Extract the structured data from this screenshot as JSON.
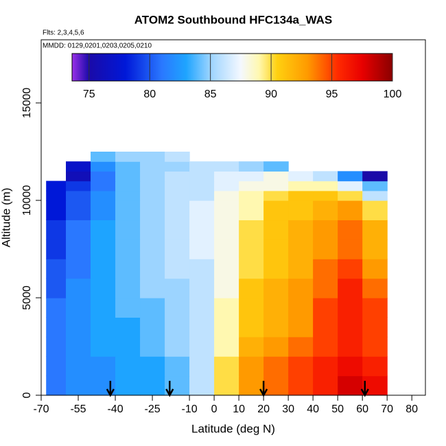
{
  "chart_data": {
    "type": "heatmap",
    "title": "ATOM2 Southbound HFC134a_WAS",
    "subtitle": "Flts: 2,3,4,5,6",
    "annotation": "MMDD: 0129,0201,0203,0205,0210",
    "x_label": "Latitude (deg N)",
    "y_label": "Altitude (m)",
    "xlim": [
      -70,
      85.5
    ],
    "ylim": [
      0,
      18240
    ],
    "xticks": [
      -70,
      -55,
      -40,
      -25,
      -10,
      0,
      10,
      20,
      30,
      40,
      50,
      60,
      70,
      80
    ],
    "yticks": [
      0,
      5000,
      10000,
      15000
    ],
    "lat_edges": [
      -68,
      -60,
      -50,
      -40,
      -30,
      -20,
      -10,
      0,
      10,
      20,
      30,
      40,
      50,
      60,
      70
    ],
    "alt_edges": [
      0,
      1000,
      2000,
      3000,
      4000,
      5000,
      6000,
      7000,
      8000,
      9000,
      10000,
      10500,
      11000,
      11500,
      12000,
      12500
    ],
    "values": [
      [
        81,
        82,
        82,
        83,
        83,
        84,
        86,
        90,
        93,
        94,
        95,
        96,
        98,
        97
      ],
      [
        81,
        82,
        82,
        83,
        83,
        84,
        86,
        90,
        93,
        94,
        95,
        96,
        97,
        96
      ],
      [
        81,
        82,
        83,
        83,
        84,
        85,
        86,
        89,
        92,
        93,
        94,
        95,
        96,
        95
      ],
      [
        81,
        82,
        83,
        83,
        84,
        85,
        86,
        89,
        91,
        92,
        93,
        95,
        96,
        95
      ],
      [
        81,
        82,
        83,
        84,
        84,
        85,
        86,
        89,
        91,
        92,
        93,
        95,
        96,
        95
      ],
      [
        80,
        82,
        83,
        84,
        85,
        85,
        86,
        88,
        91,
        92,
        93,
        94,
        96,
        94
      ],
      [
        80,
        81,
        83,
        84,
        85,
        86,
        86,
        88,
        90,
        91,
        92,
        94,
        95,
        93
      ],
      [
        79,
        81,
        83,
        84,
        85,
        86,
        87,
        88,
        90,
        91,
        92,
        93,
        94,
        92
      ],
      [
        79,
        81,
        83,
        84,
        85,
        86,
        87,
        88,
        90,
        91,
        92,
        93,
        94,
        92
      ],
      [
        78,
        80,
        82,
        84,
        85,
        86,
        87,
        88,
        89,
        91,
        91,
        92,
        93,
        90
      ],
      [
        78,
        80,
        82,
        84,
        85,
        86,
        86,
        88,
        89,
        90,
        91,
        91,
        90,
        86
      ],
      [
        78,
        79,
        81,
        84,
        85,
        86,
        86,
        87,
        88,
        88,
        89,
        89,
        87,
        84
      ],
      [
        null,
        76,
        81,
        84,
        85,
        86,
        86,
        87,
        87,
        88,
        87,
        86,
        82,
        75
      ],
      [
        null,
        77,
        82,
        84,
        85,
        85,
        86,
        86,
        85,
        84,
        null,
        null,
        null,
        null
      ],
      [
        null,
        null,
        84,
        85,
        85,
        86,
        null,
        null,
        null,
        null,
        null,
        null,
        null,
        null
      ]
    ],
    "arrows": [
      -42,
      -18,
      20,
      61
    ],
    "colorbar": {
      "lim": [
        73.6,
        100
      ],
      "ticks": [
        75,
        80,
        85,
        90,
        95,
        100
      ],
      "stops": [
        {
          "value": 73.6,
          "color": "#9a30e8"
        },
        {
          "value": 75,
          "color": "#1a0aa8"
        },
        {
          "value": 78,
          "color": "#0018d8"
        },
        {
          "value": 81,
          "color": "#2a78ff"
        },
        {
          "value": 83,
          "color": "#1ea4ff"
        },
        {
          "value": 85,
          "color": "#9cd4ff"
        },
        {
          "value": 87.5,
          "color": "#f4f8ff"
        },
        {
          "value": 89,
          "color": "#fff8b0"
        },
        {
          "value": 90.5,
          "color": "#ffd010"
        },
        {
          "value": 93,
          "color": "#ff9a00"
        },
        {
          "value": 95.5,
          "color": "#ff2a00"
        },
        {
          "value": 97.5,
          "color": "#e80000"
        },
        {
          "value": 100,
          "color": "#8a0000"
        }
      ]
    }
  }
}
